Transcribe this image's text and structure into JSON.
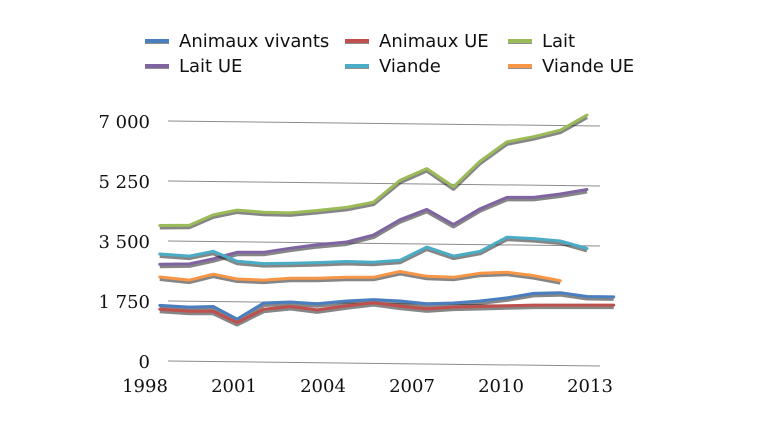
{
  "chart_data": {
    "type": "line",
    "title": "",
    "xlabel": "",
    "ylabel": "",
    "ylim": [
      0,
      7000
    ],
    "xlim": [
      1998,
      2014
    ],
    "yticks": [
      0,
      1750,
      3500,
      5250,
      7000
    ],
    "ytick_labels": [
      "0",
      "1 750",
      "3 500",
      "5 250",
      "7 000"
    ],
    "xticks": [
      1998,
      2001,
      2004,
      2007,
      2010,
      2013
    ],
    "xtick_labels": [
      "1998",
      "2001",
      "2004",
      "2007",
      "2010",
      "2013"
    ],
    "grid": true,
    "legend_position": "top",
    "x": [
      1998.5,
      1999.5,
      2000.3,
      2001.1,
      2002,
      2002.9,
      2003.8,
      2004.8,
      2005.7,
      2006.6,
      2007.5,
      2008.4,
      2009.3,
      2010.2,
      2011.1,
      2012,
      2012.9,
      2013.8
    ],
    "series": [
      {
        "name": "Animaux vivants",
        "color": "#4a7ebf",
        "values": [
          1650,
          1600,
          1620,
          1250,
          1720,
          1750,
          1700,
          1780,
          1820,
          1780,
          1700,
          1720,
          1780,
          1870,
          2000,
          2020,
          1910,
          1900
        ]
      },
      {
        "name": "Animaux UE",
        "color": "#c0504d",
        "values": [
          1540,
          1480,
          1480,
          1150,
          1540,
          1620,
          1520,
          1640,
          1730,
          1630,
          1550,
          1600,
          1620,
          1640,
          1660,
          1660,
          1660,
          1660
        ]
      },
      {
        "name": "Lait",
        "color": "#9bbb59",
        "values": [
          3980,
          3990,
          4290,
          4430,
          4370,
          4350,
          4420,
          4510,
          4660,
          5300,
          5640,
          5110,
          5860,
          6420,
          6570,
          6760,
          7200,
          null
        ]
      },
      {
        "name": "Lait UE",
        "color": "#8064a2",
        "values": [
          2850,
          2860,
          3010,
          3200,
          3200,
          3320,
          3420,
          3500,
          3700,
          4150,
          4450,
          4010,
          4470,
          4800,
          4800,
          4900,
          5030,
          null
        ]
      },
      {
        "name": "Viande",
        "color": "#4bacc6",
        "values": [
          3150,
          3090,
          3230,
          2940,
          2870,
          2880,
          2900,
          2930,
          2910,
          2970,
          3350,
          3090,
          3230,
          3640,
          3600,
          3530,
          3310,
          null
        ]
      },
      {
        "name": "Viande UE",
        "color": "#f79646",
        "values": [
          2480,
          2390,
          2560,
          2420,
          2390,
          2440,
          2440,
          2470,
          2470,
          2640,
          2500,
          2470,
          2590,
          2620,
          2520,
          2370,
          null,
          null
        ]
      }
    ]
  }
}
